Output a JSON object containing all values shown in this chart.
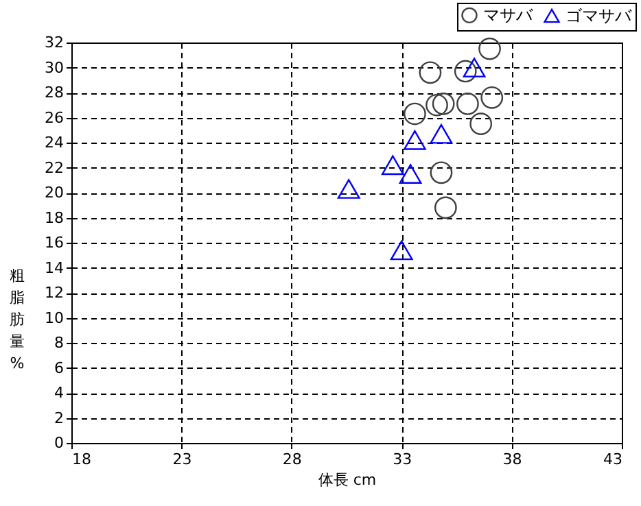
{
  "chart_data": {
    "type": "scatter",
    "xlabel": "体長 cm",
    "ylabel": "粗脂肪量%",
    "xlim": [
      18,
      43
    ],
    "xticks": [
      18,
      23,
      28,
      33,
      38,
      43
    ],
    "ylim": [
      0,
      32
    ],
    "yticks": [
      0,
      2,
      4,
      6,
      8,
      10,
      12,
      14,
      16,
      18,
      20,
      22,
      24,
      26,
      28,
      30,
      32
    ],
    "grid": true,
    "legend": "top right",
    "series": [
      {
        "name": "マサバ",
        "color": "#404040",
        "marker": "circle",
        "x": [
          37.0,
          34.3,
          35.9,
          37.1,
          36.0,
          34.9,
          34.6,
          33.6,
          36.6,
          34.8,
          35.0
        ],
        "values": [
          31.5,
          29.6,
          29.7,
          27.6,
          27.1,
          27.1,
          27.0,
          26.3,
          25.5,
          21.6,
          18.8
        ]
      },
      {
        "name": "ゴマサバ",
        "color": "#0000ff",
        "marker": "triangle",
        "x": [
          36.3,
          34.8,
          33.6,
          32.6,
          33.4,
          30.6,
          33.0
        ],
        "values": [
          30.0,
          24.7,
          24.2,
          22.2,
          21.5,
          20.3,
          15.4
        ]
      }
    ]
  }
}
